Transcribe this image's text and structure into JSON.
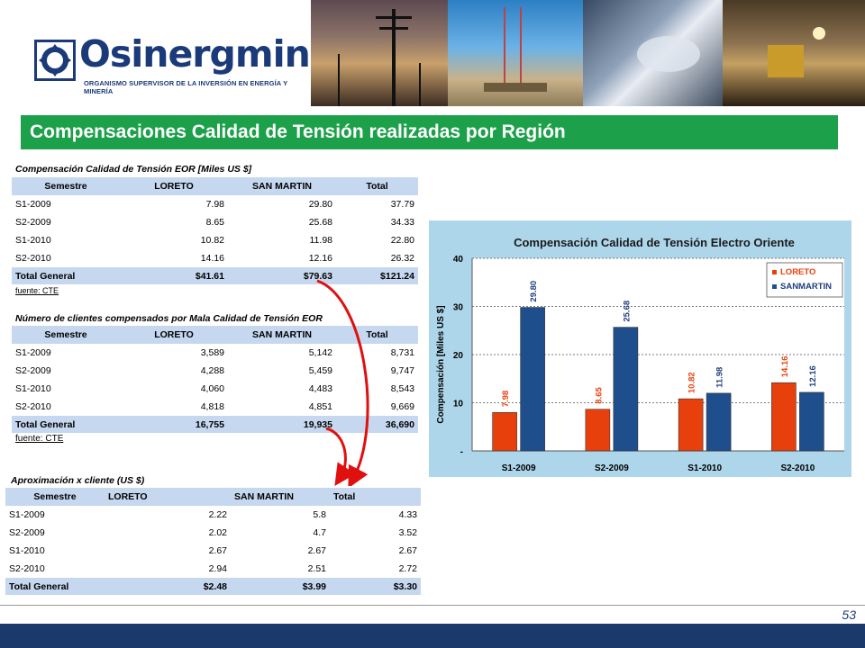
{
  "header": {
    "logo_text": "Osinergmin",
    "logo_subtitle": "ORGANISMO SUPERVISOR DE LA INVERSIÓN EN ENERGÍA Y MINERÍA"
  },
  "slide_title": "Compensaciones Calidad de Tensión realizadas por Región",
  "table1": {
    "caption": "Compensación Calidad de Tensión EOR [Miles US $]",
    "headers": [
      "Semestre",
      "LORETO",
      "SAN MARTIN",
      "Total"
    ],
    "rows": [
      [
        "S1-2009",
        "7.98",
        "29.80",
        "37.79"
      ],
      [
        "S2-2009",
        "8.65",
        "25.68",
        "34.33"
      ],
      [
        "S1-2010",
        "10.82",
        "11.98",
        "22.80"
      ],
      [
        "S2-2010",
        "14.16",
        "12.16",
        "26.32"
      ]
    ],
    "total": [
      "Total General",
      "$41.61",
      "$79.63",
      "$121.24"
    ],
    "source": "fuente: CTE"
  },
  "table2": {
    "caption": "Número de clientes compensados por Mala Calidad de Tensión EOR",
    "headers": [
      "Semestre",
      "LORETO",
      "SAN MARTIN",
      "Total"
    ],
    "rows": [
      [
        "S1-2009",
        "3,589",
        "5,142",
        "8,731"
      ],
      [
        "S2-2009",
        "4,288",
        "5,459",
        "9,747"
      ],
      [
        "S1-2010",
        "4,060",
        "4,483",
        "8,543"
      ],
      [
        "S2-2010",
        "4,818",
        "4,851",
        "9,669"
      ]
    ],
    "total": [
      "Total General",
      "16,755",
      "19,935",
      "36,690"
    ],
    "source": "fuente: CTE"
  },
  "table3": {
    "caption": "Aproximación x cliente (US $)",
    "headers": [
      "Semestre",
      "LORETO",
      "SAN MARTIN",
      "Total"
    ],
    "rows": [
      [
        "S1-2009",
        "2.22",
        "5.8",
        "4.33"
      ],
      [
        "S2-2009",
        "2.02",
        "4.7",
        "3.52"
      ],
      [
        "S1-2010",
        "2.67",
        "2.67",
        "2.67"
      ],
      [
        "S2-2010",
        "2.94",
        "2.51",
        "2.72"
      ]
    ],
    "total": [
      "Total General",
      "$2.48",
      "$3.99",
      "$3.30"
    ]
  },
  "chart_data": {
    "type": "bar",
    "title": "Compensación Calidad de Tensión Electro Oriente",
    "ylabel": "Compensación [Miles US $]",
    "xlabel": "",
    "categories": [
      "S1-2009",
      "S2-2009",
      "S1-2010",
      "S2-2010"
    ],
    "series": [
      {
        "name": "LORETO",
        "color": "#e8400c",
        "values": [
          7.98,
          8.65,
          10.82,
          14.16
        ]
      },
      {
        "name": "SANMARTIN",
        "color": "#1f4e8c",
        "values": [
          29.8,
          25.68,
          11.98,
          12.16
        ]
      }
    ],
    "ylim": [
      0,
      40
    ],
    "yticks": [
      "-",
      "10",
      "20",
      "30",
      "40"
    ],
    "grid": true,
    "legend": "top-right"
  },
  "page_number": "53",
  "colors": {
    "title_bar": "#1ca04a",
    "table_header": "#c6d8ef",
    "footer": "#1b3a6b",
    "arrow": "#e01010"
  }
}
